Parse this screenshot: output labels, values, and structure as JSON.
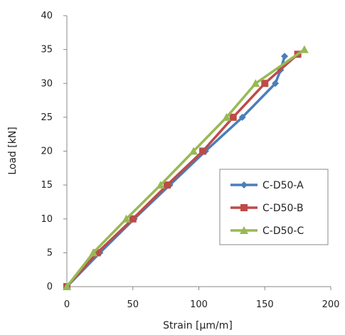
{
  "chart_data": {
    "type": "line",
    "xlabel": "Strain [μm/m]",
    "ylabel": "Load [kN]",
    "xlim": [
      0,
      200
    ],
    "ylim": [
      0,
      40
    ],
    "xticks": [
      0,
      50,
      100,
      150,
      200
    ],
    "yticks": [
      0,
      5,
      10,
      15,
      20,
      25,
      30,
      35,
      40
    ],
    "grid": false,
    "legend_position": "right-center",
    "series": [
      {
        "name": "C-D50-A",
        "color": "#4a7ebb",
        "marker": "diamond",
        "points": [
          [
            0,
            0
          ],
          [
            25,
            5
          ],
          [
            51,
            10
          ],
          [
            78,
            15
          ],
          [
            105,
            20
          ],
          [
            133,
            25
          ],
          [
            158,
            30
          ],
          [
            162,
            32
          ],
          [
            165,
            34
          ]
        ]
      },
      {
        "name": "C-D50-B",
        "color": "#be4b48",
        "marker": "square",
        "points": [
          [
            0,
            0
          ],
          [
            23,
            5
          ],
          [
            50,
            10
          ],
          [
            76,
            15
          ],
          [
            103,
            20
          ],
          [
            126,
            25
          ],
          [
            150,
            30
          ],
          [
            175,
            34.3
          ]
        ]
      },
      {
        "name": "C-D50-C",
        "color": "#98b954",
        "marker": "triangle",
        "points": [
          [
            0,
            0
          ],
          [
            20,
            5
          ],
          [
            45,
            10
          ],
          [
            71,
            15
          ],
          [
            96,
            20
          ],
          [
            121,
            25
          ],
          [
            143,
            30
          ],
          [
            180,
            35
          ]
        ]
      }
    ]
  }
}
